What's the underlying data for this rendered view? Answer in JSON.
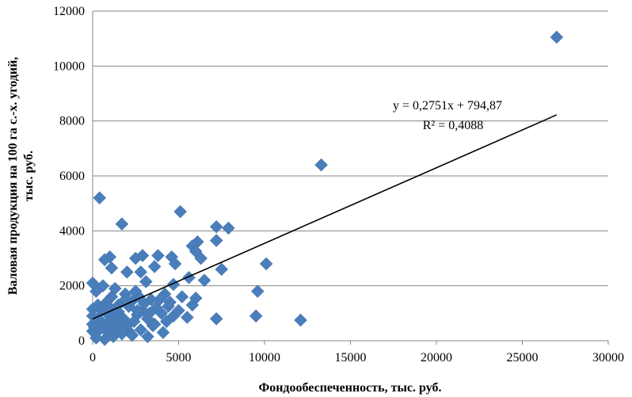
{
  "chart_data": {
    "type": "scatter",
    "xlabel": "Фондообеспеченность, тыс. руб.",
    "ylabel_line1": "Валовая продукция на 100 га с.-х. угодий,",
    "ylabel_line2": "тыс. руб.",
    "xlim": [
      0,
      30000
    ],
    "ylim": [
      0,
      12000
    ],
    "x_ticks": [
      "0",
      "5000",
      "10000",
      "15000",
      "20000",
      "25000",
      "30000"
    ],
    "y_ticks": [
      "0",
      "2000",
      "4000",
      "6000",
      "8000",
      "10000",
      "12000"
    ],
    "grid": "horizontal",
    "marker_color": "#4a7ebb",
    "trendline": {
      "type": "linear",
      "slope": 0.2751,
      "intercept": 794.87,
      "x_range": [
        0,
        27000
      ],
      "equation": "y = 0,2751x + 794,87",
      "r_squared": "R² = 0,4088"
    },
    "points": [
      [
        27000,
        11050
      ],
      [
        13300,
        6400
      ],
      [
        400,
        5200
      ],
      [
        1700,
        4250
      ],
      [
        5100,
        4700
      ],
      [
        7200,
        4150
      ],
      [
        7900,
        4100
      ],
      [
        7200,
        3650
      ],
      [
        6100,
        3600
      ],
      [
        5800,
        3450
      ],
      [
        6000,
        3250
      ],
      [
        4600,
        3050
      ],
      [
        3800,
        3100
      ],
      [
        2900,
        3100
      ],
      [
        2500,
        3000
      ],
      [
        1000,
        3050
      ],
      [
        700,
        2950
      ],
      [
        1100,
        2650
      ],
      [
        6300,
        3000
      ],
      [
        7500,
        2600
      ],
      [
        10100,
        2800
      ],
      [
        6500,
        2200
      ],
      [
        5600,
        2300
      ],
      [
        4800,
        2800
      ],
      [
        3600,
        2700
      ],
      [
        2800,
        2500
      ],
      [
        2000,
        2500
      ],
      [
        4700,
        2050
      ],
      [
        3100,
        2150
      ],
      [
        600,
        2000
      ],
      [
        0,
        2100
      ],
      [
        200,
        1800
      ],
      [
        9600,
        1800
      ],
      [
        6000,
        1550
      ],
      [
        5200,
        1600
      ],
      [
        4200,
        1700
      ],
      [
        3400,
        1500
      ],
      [
        2700,
        1600
      ],
      [
        1900,
        1700
      ],
      [
        1100,
        1600
      ],
      [
        800,
        1400
      ],
      [
        300,
        1300
      ],
      [
        5800,
        1300
      ],
      [
        4400,
        1250
      ],
      [
        3700,
        1200
      ],
      [
        2900,
        1100
      ],
      [
        2100,
        1250
      ],
      [
        1500,
        1050
      ],
      [
        900,
        950
      ],
      [
        0,
        1150
      ],
      [
        0,
        900
      ],
      [
        500,
        700
      ],
      [
        1200,
        750
      ],
      [
        1800,
        800
      ],
      [
        2600,
        950
      ],
      [
        3200,
        800
      ],
      [
        4000,
        1000
      ],
      [
        4700,
        900
      ],
      [
        5500,
        850
      ],
      [
        7200,
        800
      ],
      [
        9500,
        900
      ],
      [
        12100,
        750
      ],
      [
        0,
        350
      ],
      [
        400,
        400
      ],
      [
        900,
        300
      ],
      [
        1400,
        450
      ],
      [
        2100,
        350
      ],
      [
        2800,
        400
      ],
      [
        3500,
        550
      ],
      [
        4100,
        300
      ],
      [
        200,
        100
      ],
      [
        700,
        50
      ],
      [
        1200,
        150
      ],
      [
        1700,
        250
      ],
      [
        2300,
        200
      ],
      [
        3200,
        150
      ],
      [
        100,
        500
      ],
      [
        1500,
        1300
      ],
      [
        2300,
        1450
      ],
      [
        3000,
        1350
      ],
      [
        3900,
        1500
      ],
      [
        500,
        1100
      ],
      [
        1000,
        1200
      ],
      [
        2500,
        1800
      ],
      [
        1300,
        1900
      ],
      [
        3600,
        600
      ],
      [
        2000,
        550
      ],
      [
        4500,
        1400
      ],
      [
        1600,
        600
      ],
      [
        2400,
        700
      ],
      [
        0,
        600
      ],
      [
        300,
        800
      ],
      [
        800,
        600
      ],
      [
        1100,
        400
      ],
      [
        2600,
        1100
      ],
      [
        3300,
        1000
      ],
      [
        4300,
        700
      ],
      [
        5000,
        1100
      ],
      [
        1300,
        1000
      ],
      [
        1900,
        1500
      ]
    ]
  }
}
